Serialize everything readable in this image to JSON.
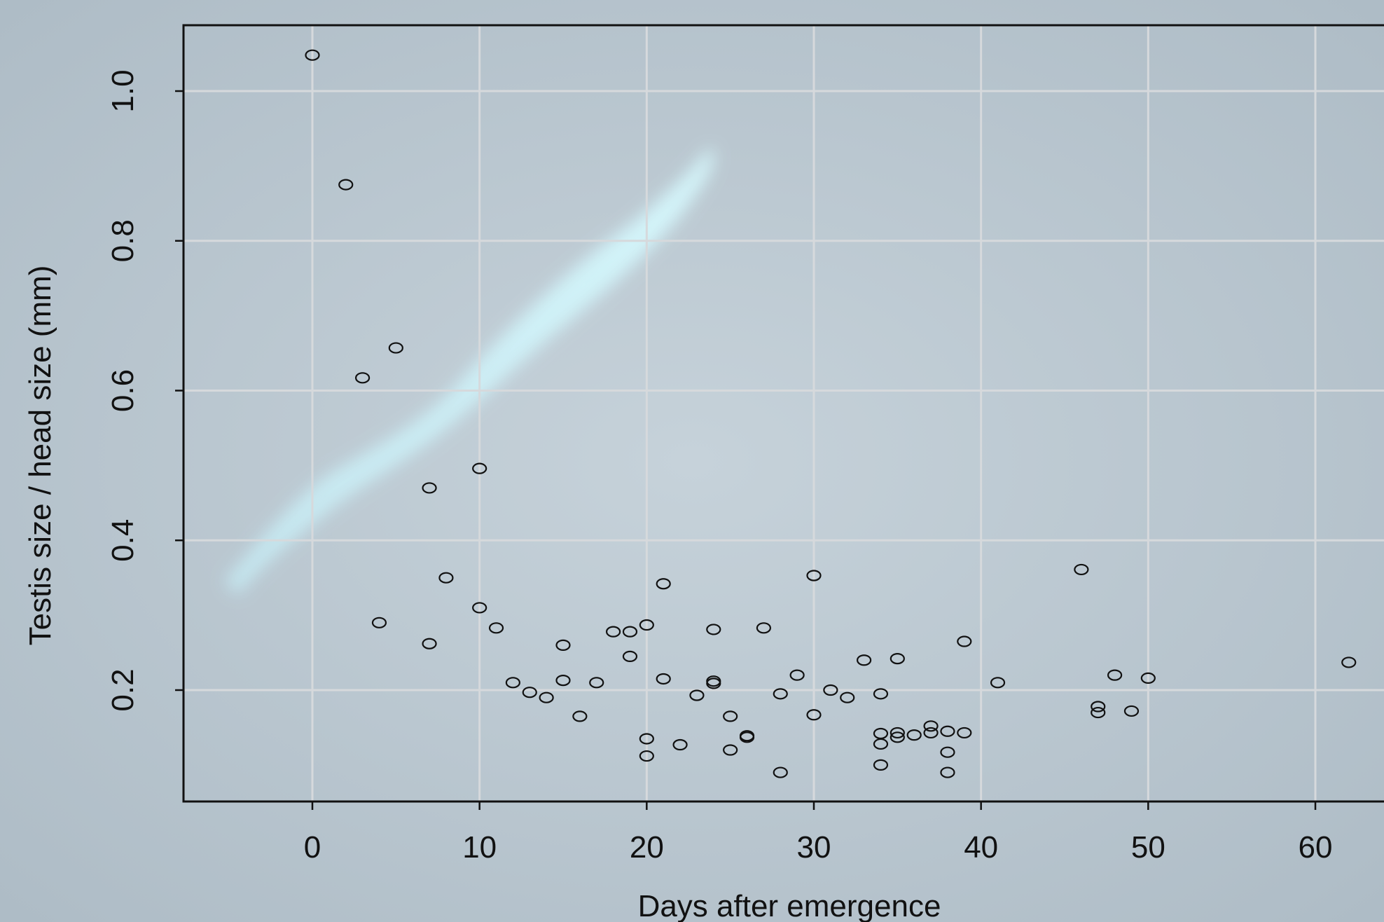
{
  "chart_data": {
    "type": "scatter",
    "title": "",
    "xlabel": "Days after emergence",
    "ylabel": "Testis size / head size (mm)",
    "xlim": [
      -7.7,
      63
    ],
    "ylim": [
      0.055,
      1.09
    ],
    "x_ticks": [
      0,
      10,
      20,
      30,
      40,
      50,
      60
    ],
    "x_tick_labels": [
      "0",
      "10",
      "20",
      "30",
      "40",
      "50",
      "60"
    ],
    "y_ticks": [
      0.2,
      0.4,
      0.6,
      0.8,
      1.0
    ],
    "y_tick_labels": [
      "0.2",
      "0.4",
      "0.6",
      "0.8",
      "1.0"
    ],
    "grid": true,
    "marker": "open-circle",
    "colors": {
      "background": "#b8c4cc",
      "grid": "#d6d9dc",
      "points": "#111111",
      "axis": "#111111"
    },
    "points": [
      {
        "x": 0,
        "y": 1.048
      },
      {
        "x": 2,
        "y": 0.875
      },
      {
        "x": 3,
        "y": 0.617
      },
      {
        "x": 5,
        "y": 0.657
      },
      {
        "x": 4,
        "y": 0.29
      },
      {
        "x": 7,
        "y": 0.47
      },
      {
        "x": 7,
        "y": 0.262
      },
      {
        "x": 8,
        "y": 0.35
      },
      {
        "x": 10,
        "y": 0.496
      },
      {
        "x": 10,
        "y": 0.31
      },
      {
        "x": 11,
        "y": 0.283
      },
      {
        "x": 12,
        "y": 0.21
      },
      {
        "x": 13,
        "y": 0.197
      },
      {
        "x": 14,
        "y": 0.19
      },
      {
        "x": 15,
        "y": 0.26
      },
      {
        "x": 15,
        "y": 0.213
      },
      {
        "x": 16,
        "y": 0.165
      },
      {
        "x": 17,
        "y": 0.21
      },
      {
        "x": 18,
        "y": 0.278
      },
      {
        "x": 19,
        "y": 0.278
      },
      {
        "x": 19,
        "y": 0.245
      },
      {
        "x": 20,
        "y": 0.287
      },
      {
        "x": 20,
        "y": 0.135
      },
      {
        "x": 20,
        "y": 0.112
      },
      {
        "x": 21,
        "y": 0.342
      },
      {
        "x": 21,
        "y": 0.215
      },
      {
        "x": 22,
        "y": 0.127
      },
      {
        "x": 23,
        "y": 0.193
      },
      {
        "x": 24,
        "y": 0.281
      },
      {
        "x": 24,
        "y": 0.212
      },
      {
        "x": 24,
        "y": 0.209
      },
      {
        "x": 25,
        "y": 0.165
      },
      {
        "x": 25,
        "y": 0.12
      },
      {
        "x": 26,
        "y": 0.139
      },
      {
        "x": 26,
        "y": 0.137
      },
      {
        "x": 27,
        "y": 0.283
      },
      {
        "x": 28,
        "y": 0.195
      },
      {
        "x": 28,
        "y": 0.09
      },
      {
        "x": 29,
        "y": 0.22
      },
      {
        "x": 30,
        "y": 0.353
      },
      {
        "x": 30,
        "y": 0.167
      },
      {
        "x": 31,
        "y": 0.2
      },
      {
        "x": 32,
        "y": 0.19
      },
      {
        "x": 33,
        "y": 0.24
      },
      {
        "x": 34,
        "y": 0.195
      },
      {
        "x": 34,
        "y": 0.142
      },
      {
        "x": 34,
        "y": 0.128
      },
      {
        "x": 34,
        "y": 0.1
      },
      {
        "x": 35,
        "y": 0.242
      },
      {
        "x": 35,
        "y": 0.143
      },
      {
        "x": 35,
        "y": 0.137
      },
      {
        "x": 36,
        "y": 0.14
      },
      {
        "x": 37,
        "y": 0.152
      },
      {
        "x": 37,
        "y": 0.143
      },
      {
        "x": 38,
        "y": 0.145
      },
      {
        "x": 38,
        "y": 0.117
      },
      {
        "x": 38,
        "y": 0.09
      },
      {
        "x": 39,
        "y": 0.265
      },
      {
        "x": 39,
        "y": 0.143
      },
      {
        "x": 41,
        "y": 0.21
      },
      {
        "x": 46,
        "y": 0.361
      },
      {
        "x": 47,
        "y": 0.178
      },
      {
        "x": 47,
        "y": 0.17
      },
      {
        "x": 48,
        "y": 0.22
      },
      {
        "x": 49,
        "y": 0.172
      },
      {
        "x": 50,
        "y": 0.216
      },
      {
        "x": 62,
        "y": 0.237
      }
    ]
  }
}
